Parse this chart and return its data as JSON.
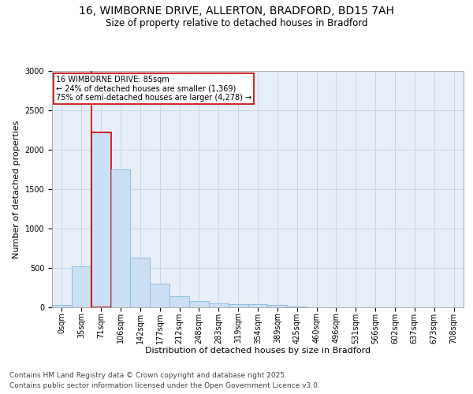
{
  "title_line1": "16, WIMBORNE DRIVE, ALLERTON, BRADFORD, BD15 7AH",
  "title_line2": "Size of property relative to detached houses in Bradford",
  "xlabel": "Distribution of detached houses by size in Bradford",
  "ylabel": "Number of detached properties",
  "categories": [
    "0sqm",
    "35sqm",
    "71sqm",
    "106sqm",
    "142sqm",
    "177sqm",
    "212sqm",
    "248sqm",
    "283sqm",
    "319sqm",
    "354sqm",
    "389sqm",
    "425sqm",
    "460sqm",
    "496sqm",
    "531sqm",
    "566sqm",
    "602sqm",
    "637sqm",
    "673sqm",
    "708sqm"
  ],
  "values": [
    30,
    520,
    2220,
    1750,
    635,
    300,
    145,
    80,
    55,
    40,
    40,
    30,
    15,
    5,
    5,
    5,
    0,
    0,
    0,
    0,
    0
  ],
  "bar_color": "#cce0f5",
  "bar_edge_color": "#7ab8e0",
  "highlight_bar_index": 2,
  "highlight_line_color": "#cc0000",
  "annotation_title": "16 WIMBORNE DRIVE: 85sqm",
  "annotation_line1": "← 24% of detached houses are smaller (1,369)",
  "annotation_line2": "75% of semi-detached houses are larger (4,278) →",
  "annotation_box_color": "#cc0000",
  "ylim": [
    0,
    3000
  ],
  "yticks": [
    0,
    500,
    1000,
    1500,
    2000,
    2500,
    3000
  ],
  "grid_color": "#c8d4e8",
  "plot_bg_color": "#e8eef8",
  "footer_line1": "Contains HM Land Registry data © Crown copyright and database right 2025.",
  "footer_line2": "Contains public sector information licensed under the Open Government Licence v3.0.",
  "title_fontsize": 10,
  "subtitle_fontsize": 8.5,
  "axis_label_fontsize": 8,
  "tick_fontsize": 7,
  "annotation_fontsize": 7,
  "footer_fontsize": 6.5
}
